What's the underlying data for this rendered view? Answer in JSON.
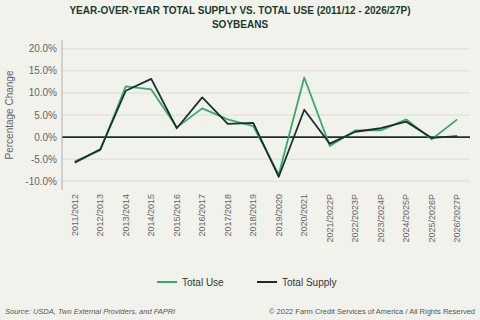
{
  "chart_data": {
    "type": "line",
    "title": "YEAR-OVER-YEAR TOTAL SUPPLY VS. TOTAL USE (2011/12 - 2026/27P)",
    "subtitle": "SOYBEANS",
    "categories": [
      "2011/2012",
      "2012/2013",
      "2013/2014",
      "2014/2015",
      "2015/2016",
      "2016/2017",
      "2017/2018",
      "2018/2019",
      "2019/2020",
      "2020/2021",
      "2021/2022P",
      "2022/2023P",
      "2023/2024P",
      "2024/2025P",
      "2025/2026P",
      "2026/2027P"
    ],
    "series": [
      {
        "name": "Total Use",
        "color": "#3aaa6a",
        "values": [
          -5.5,
          -3.0,
          11.5,
          10.8,
          2.2,
          6.5,
          4.0,
          2.5,
          -8.5,
          13.5,
          -2.0,
          1.5,
          1.5,
          4.0,
          -0.5,
          4.0
        ]
      },
      {
        "name": "Total Supply",
        "color": "#1a3030",
        "values": [
          -5.8,
          -2.8,
          10.5,
          13.2,
          2.0,
          9.0,
          3.0,
          3.2,
          -9.0,
          6.2,
          -1.5,
          1.2,
          2.0,
          3.5,
          -0.2,
          0.2
        ]
      }
    ],
    "y_label": "Percentage Change",
    "ylim": [
      -12,
      22
    ],
    "yticks": [
      {
        "value": -10,
        "label": "-10.0%"
      },
      {
        "value": -5,
        "label": "-5.0%"
      },
      {
        "value": 0,
        "label": "0.0%"
      },
      {
        "value": 5,
        "label": "5.0%"
      },
      {
        "value": 10,
        "label": "10.0%"
      },
      {
        "value": 15,
        "label": "15.0%"
      },
      {
        "value": 20,
        "label": "20.0%"
      }
    ],
    "grid": true,
    "legend": "bottom",
    "annotations": [
      "Source: USDA, Two External Providers, and FAPRI",
      "© 2022 Farm Credit Services of America / All Rights Reserved"
    ]
  }
}
